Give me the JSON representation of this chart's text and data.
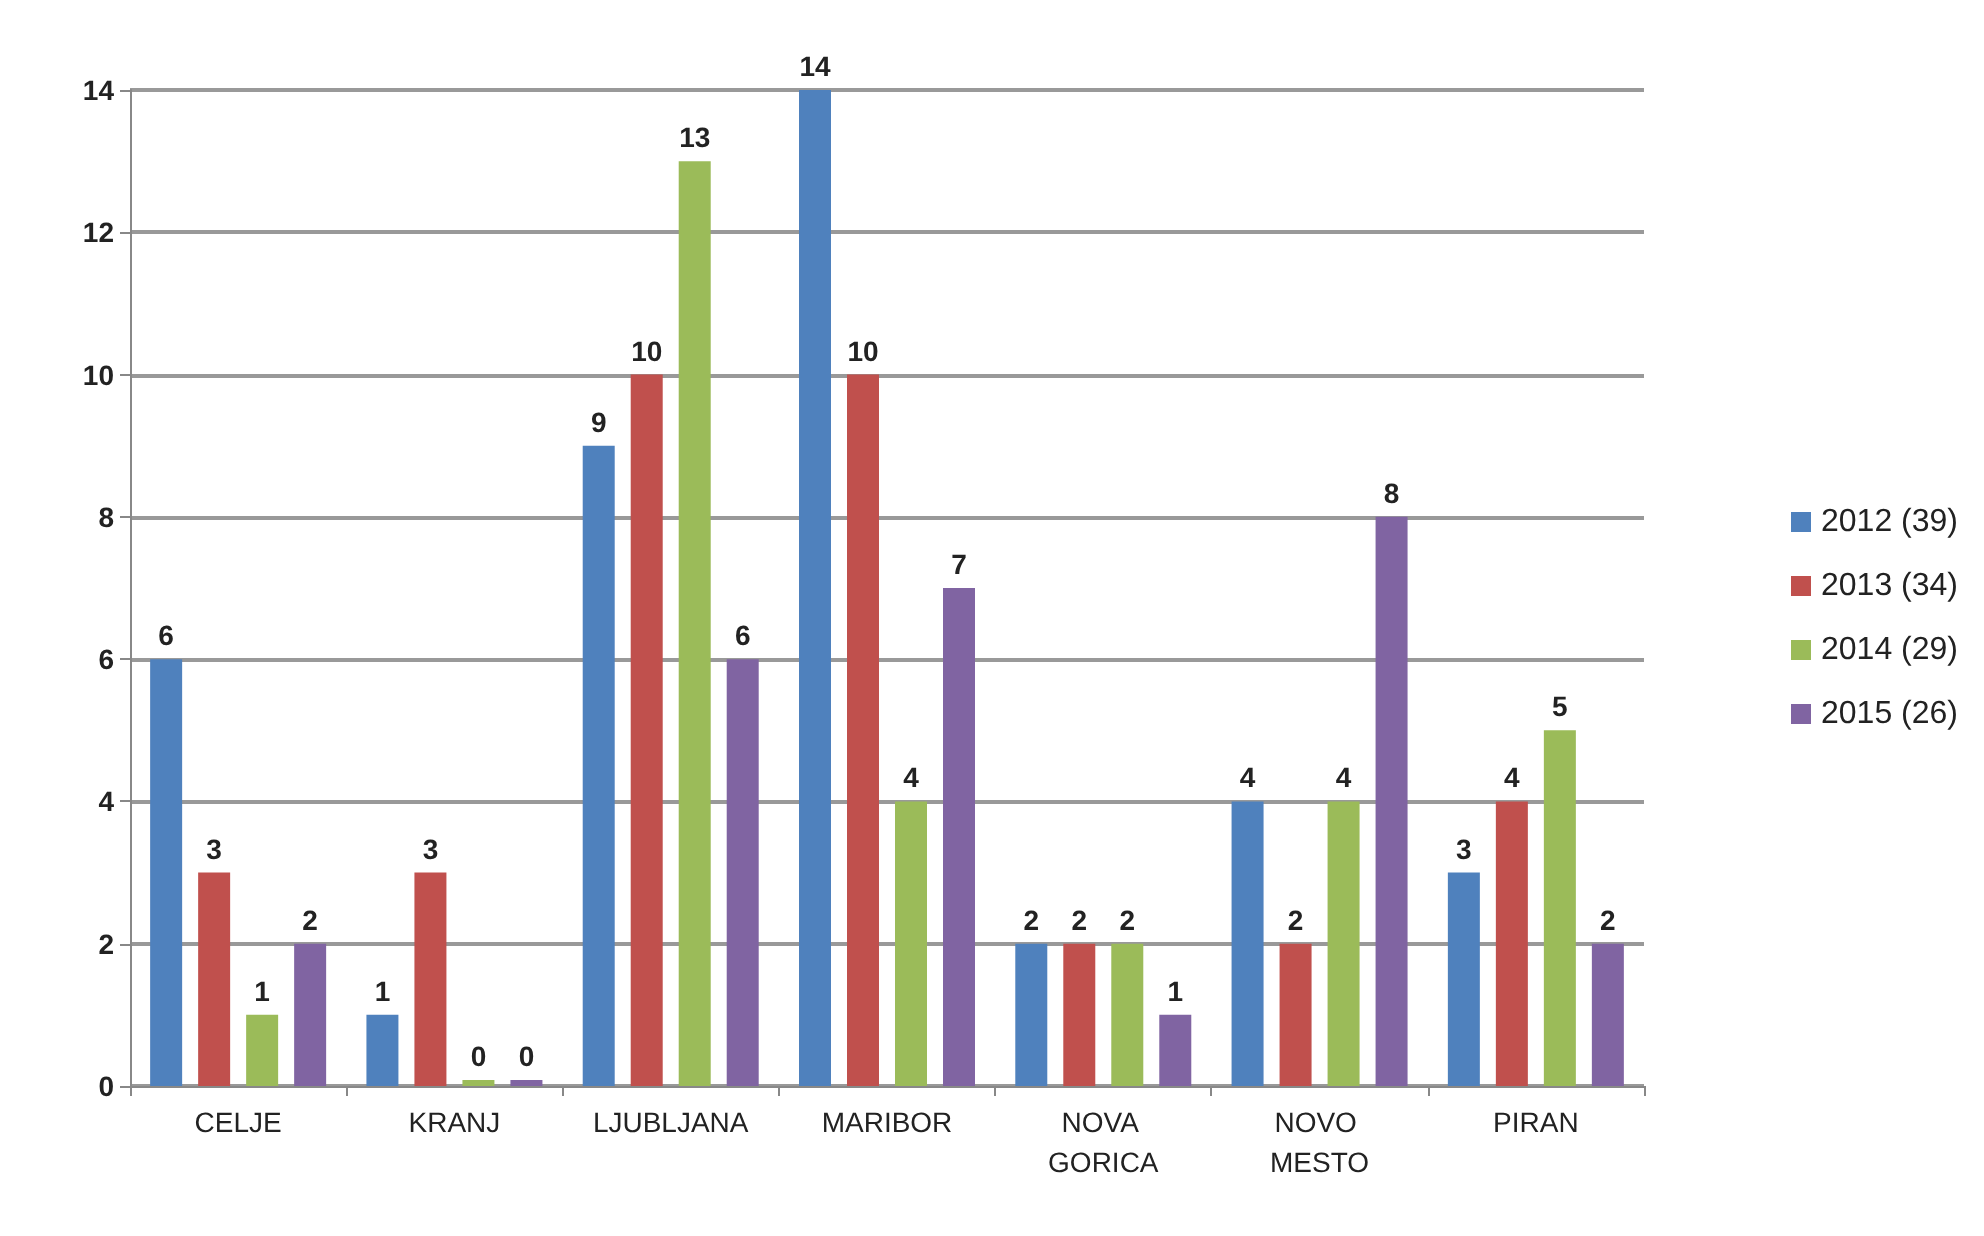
{
  "chart_data": {
    "type": "bar",
    "categories": [
      "CELJE",
      "KRANJ",
      "LJUBLJANA",
      "MARIBOR",
      "NOVA GORICA",
      "NOVO MESTO",
      "PIRAN"
    ],
    "series": [
      {
        "name": "2012 (39)",
        "color": "#4f81bd",
        "values": [
          6,
          1,
          9,
          14,
          2,
          4,
          3
        ]
      },
      {
        "name": "2013 (34)",
        "color": "#c0504d",
        "values": [
          3,
          3,
          10,
          10,
          2,
          2,
          4
        ]
      },
      {
        "name": "2014 (29)",
        "color": "#9bbb59",
        "values": [
          1,
          0,
          13,
          4,
          2,
          4,
          5
        ]
      },
      {
        "name": "2015 (26)",
        "color": "#8064a2",
        "values": [
          2,
          0,
          6,
          7,
          1,
          8,
          2
        ]
      }
    ],
    "ylim": [
      0,
      14
    ],
    "yticks": [
      0,
      2,
      4,
      6,
      8,
      10,
      12,
      14
    ],
    "grid": "y",
    "legend": "right",
    "data_labels": true
  }
}
